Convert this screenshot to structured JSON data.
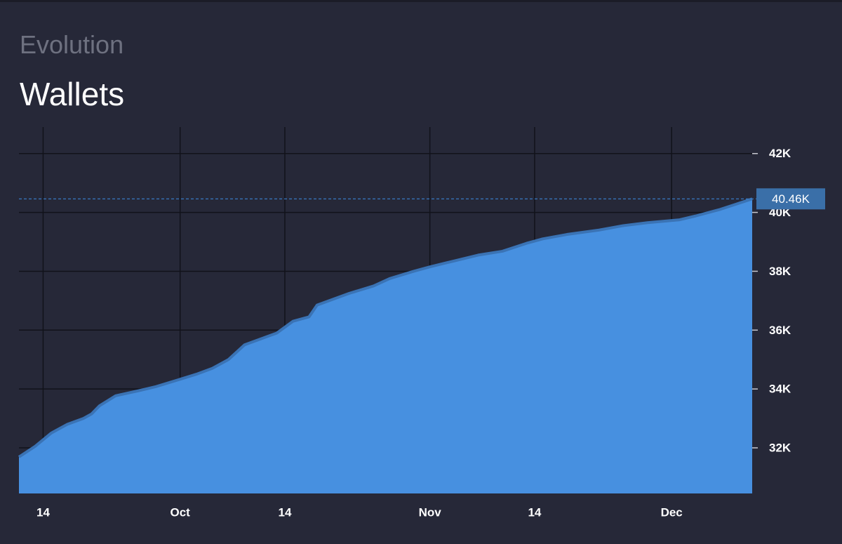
{
  "subtitle": "Evolution",
  "chart_data": {
    "type": "area",
    "title": "Wallets",
    "x": [
      -3,
      -1,
      1,
      3,
      5,
      6,
      7,
      9,
      12,
      14,
      17,
      19,
      21,
      23,
      24,
      25,
      27,
      29,
      30,
      31,
      33,
      34,
      36,
      38,
      41,
      43,
      46,
      48,
      51,
      54,
      57,
      60,
      62,
      65,
      69,
      72,
      75,
      79,
      81,
      84,
      86,
      88
    ],
    "series": [
      {
        "name": "Wallets",
        "color": "#4790e0",
        "line_color": "#3a73b5",
        "values": [
          31690,
          32050,
          32500,
          32800,
          33000,
          33150,
          33430,
          33770,
          33950,
          34080,
          34330,
          34500,
          34700,
          35000,
          35250,
          35500,
          35700,
          35900,
          36100,
          36300,
          36450,
          36850,
          37050,
          37250,
          37500,
          37750,
          38000,
          38150,
          38350,
          38550,
          38680,
          38950,
          39100,
          39250,
          39400,
          39550,
          39650,
          39750,
          39880,
          40100,
          40280,
          40460
        ]
      }
    ],
    "current": {
      "value": 40460,
      "label": "40.46K"
    },
    "xlim": [
      -3,
      88
    ],
    "xticks": [
      {
        "value": 0,
        "label": "14"
      },
      {
        "value": 17,
        "label": "Oct"
      },
      {
        "value": 30,
        "label": "14"
      },
      {
        "value": 48,
        "label": "Nov"
      },
      {
        "value": 61,
        "label": "14"
      },
      {
        "value": 78,
        "label": "Dec"
      }
    ],
    "ylim": [
      30450,
      42900
    ],
    "yticks": [
      {
        "value": 32000,
        "label": "32K"
      },
      {
        "value": 34000,
        "label": "34K"
      },
      {
        "value": 36000,
        "label": "36K"
      },
      {
        "value": 38000,
        "label": "38K"
      },
      {
        "value": 40000,
        "label": "40K"
      },
      {
        "value": 42000,
        "label": "42K"
      }
    ],
    "grid": true
  }
}
